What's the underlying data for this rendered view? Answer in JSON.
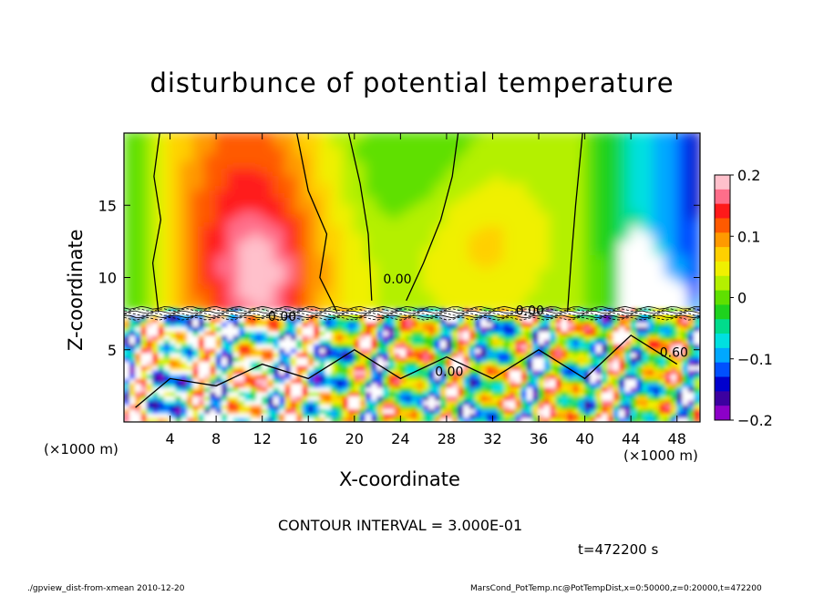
{
  "chart_data": {
    "type": "heatmap",
    "title": "disturbunce of potential temperature",
    "xlabel": "X-coordinate",
    "ylabel": "Z-coordinate",
    "x_unit": "(×1000 m)",
    "x_unit_right": "(×1000 m)",
    "xlim": [
      0,
      50
    ],
    "ylim": [
      0,
      20
    ],
    "x_ticks": [
      4,
      8,
      12,
      16,
      20,
      24,
      28,
      32,
      36,
      40,
      44,
      48
    ],
    "y_ticks": [
      5,
      10,
      15
    ],
    "colorbar": {
      "range": [
        -0.2,
        0.2
      ],
      "ticks": [
        "0.2",
        "0.1",
        "0",
        "−0.1",
        "−0.2"
      ],
      "tick_values": [
        0.2,
        0.1,
        0,
        -0.1,
        -0.2
      ],
      "colors": [
        "#ffc0cb",
        "#ff6e8a",
        "#ff1a1a",
        "#ff5a00",
        "#ff9a00",
        "#ffd000",
        "#f0f000",
        "#b4f000",
        "#5fe000",
        "#1ed21e",
        "#00dc8c",
        "#00e0e0",
        "#00a8ff",
        "#0050ff",
        "#0000cd",
        "#3c00a0",
        "#8c00c8"
      ]
    },
    "contour_labels": [
      "0.00",
      "0.00",
      "0.00",
      "0.00",
      "0.60"
    ],
    "contour_interval": "CONTOUR INTERVAL = 3.000E-01",
    "time": "t=472200 s"
  },
  "footer": {
    "left": "./gpview_dist-from-xmean  2010-12-20",
    "right": "MarsCond_PotTemp.nc@PotTempDist,x=0:50000,z=0:20000,t=472200"
  }
}
